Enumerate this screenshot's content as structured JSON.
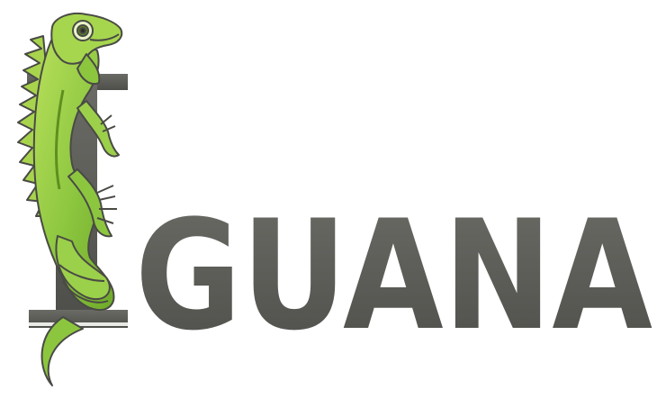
{
  "logo": {
    "wordmark_rest": "GUANA",
    "initial_letter": "I",
    "mascot": "iguana-icon",
    "colors": {
      "letters": "#5c5c57",
      "letters_highlight": "#7b7b75",
      "iguana_green": "#8cc63f",
      "iguana_light": "#b5dd5a",
      "iguana_dark": "#5e8f1e",
      "outline": "#4a4a45"
    }
  }
}
